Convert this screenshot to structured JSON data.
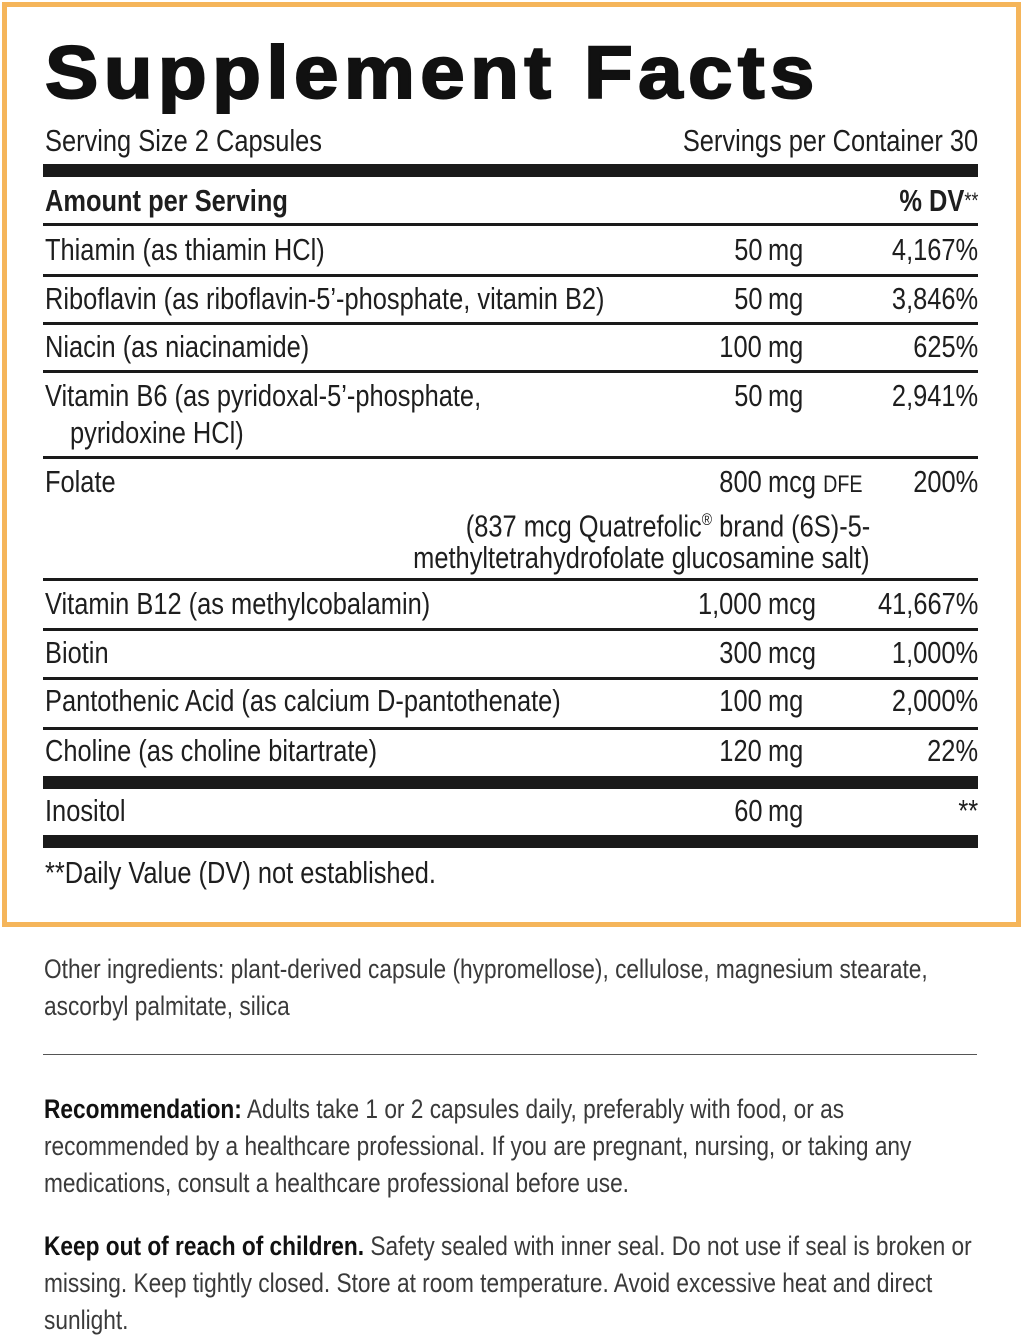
{
  "panel": {
    "title": "Supplement Facts",
    "serving_size": "Serving Size 2 Capsules",
    "servings_per_container": "Servings per Container 30",
    "amount_header": "Amount per Serving",
    "dv_header": "% DV",
    "dv_header_mark": "**",
    "border_color": "#F5B55A",
    "rows": [
      {
        "name": "Thiamin (as thiamin HCl)",
        "amount": "50",
        "unit": "mg",
        "dv": "4,167%"
      },
      {
        "name": "Riboflavin (as riboflavin-5’-phosphate, vitamin B2)",
        "amount": "50",
        "unit": "mg",
        "dv": "3,846%"
      },
      {
        "name": "Niacin (as niacinamide)",
        "amount": "100",
        "unit": "mg",
        "dv": "625%"
      },
      {
        "name": "Vitamin B6 (as pyridoxal-5’-phosphate,",
        "name2": "pyridoxine HCl)",
        "amount": "50",
        "unit": "mg",
        "dv": "2,941%"
      },
      {
        "name": "Folate",
        "amount": "800",
        "unit": "mcg",
        "unit_suffix": "DFE",
        "dv": "200%",
        "note1": "(837 mcg Quatrefolic",
        "note_reg": "®",
        "note1b": " brand (6S)-5-",
        "note2": "methyltetrahydrofolate glucosamine salt)"
      },
      {
        "name": "Vitamin B12 (as methylcobalamin)",
        "amount": "1,000",
        "unit": "mcg",
        "dv": "41,667%"
      },
      {
        "name": "Biotin",
        "amount": "300",
        "unit": "mcg",
        "dv": "1,000%"
      },
      {
        "name": "Pantothenic Acid (as calcium D-pantothenate)",
        "amount": "100",
        "unit": "mg",
        "dv": "2,000%"
      },
      {
        "name": "Choline (as choline bitartrate)",
        "amount": "120",
        "unit": "mg",
        "dv": "22%"
      },
      {
        "name": "Inositol",
        "amount": "60",
        "unit": "mg",
        "dv": "**"
      }
    ],
    "footnote": "**Daily Value (DV) not established."
  },
  "other_ingredients": "Other ingredients: plant-derived capsule (hypromellose), cellulose, magnesium stearate, ascorbyl palmitate, silica",
  "recommendation": {
    "label": "Recommendation:",
    "text": " Adults take 1 or 2 capsules daily, preferably with food, or as recommended by a healthcare professional. If you are pregnant, nursing, or taking any medications, consult a healthcare professional before use."
  },
  "warning": {
    "label": "Keep out of reach of children.",
    "text": " Safety sealed with inner seal. Do not use if seal is broken or missing. Keep tightly closed. Store at room temperature. Avoid excessive heat and direct sunlight."
  }
}
